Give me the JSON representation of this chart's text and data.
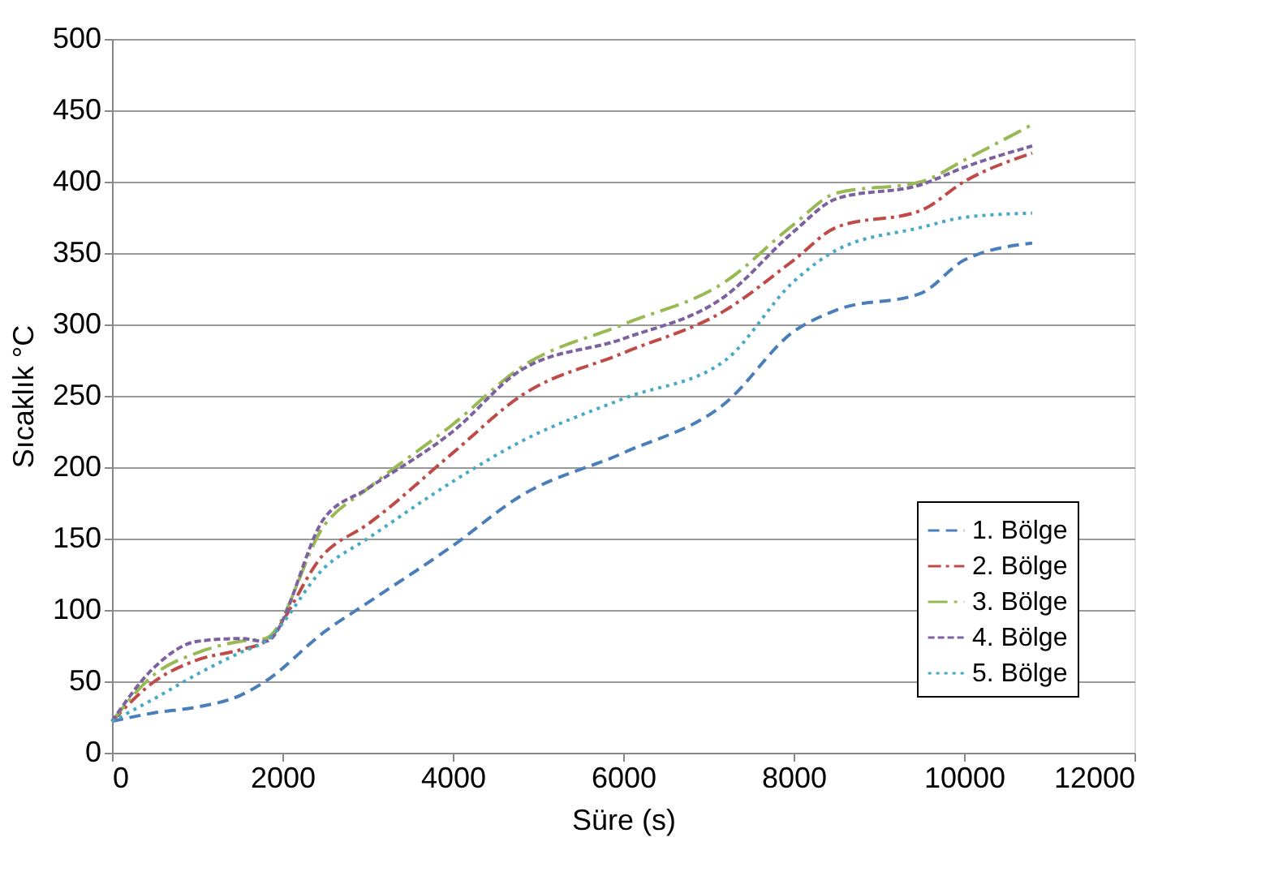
{
  "chart_data": {
    "type": "line",
    "xlabel": "Süre (s)",
    "ylabel": "Sıcaklık °C",
    "x": [
      0,
      500,
      1000,
      1500,
      1800,
      2500,
      3000,
      4000,
      4800,
      6000,
      7200,
      8000,
      8500,
      9500,
      10000,
      10800
    ],
    "series": [
      {
        "name": "1. Bölge",
        "color": "#4a7ebb",
        "line_style": "dashed",
        "values": [
          22,
          28,
          32,
          40,
          50,
          85,
          105,
          145,
          180,
          210,
          245,
          295,
          310,
          322,
          345,
          357
        ]
      },
      {
        "name": "2. Bölge",
        "color": "#be4b48",
        "line_style": "dashed",
        "values": [
          22,
          50,
          65,
          72,
          78,
          140,
          160,
          210,
          250,
          280,
          310,
          345,
          368,
          380,
          400,
          420
        ]
      },
      {
        "name": "3. Bölge",
        "color": "#98b954",
        "line_style": "dashed",
        "values": [
          22,
          55,
          70,
          78,
          80,
          160,
          185,
          230,
          270,
          300,
          330,
          370,
          392,
          400,
          415,
          440
        ]
      },
      {
        "name": "4. Bölge",
        "color": "#7d60a0",
        "line_style": "dashed",
        "values": [
          22,
          60,
          78,
          80,
          78,
          165,
          185,
          225,
          268,
          290,
          320,
          365,
          388,
          398,
          410,
          425
        ]
      },
      {
        "name": "5. Bölge",
        "color": "#46aac5",
        "line_style": "dotted",
        "values": [
          22,
          38,
          55,
          70,
          78,
          130,
          150,
          190,
          218,
          248,
          275,
          330,
          352,
          368,
          375,
          378
        ]
      }
    ],
    "xlim": [
      0,
      12000
    ],
    "xticks": [
      0,
      2000,
      4000,
      6000,
      8000,
      10000,
      12000
    ],
    "ylim": [
      0,
      500
    ],
    "yticks": [
      0,
      50,
      100,
      150,
      200,
      250,
      300,
      350,
      400,
      450,
      500
    ],
    "grid": "y",
    "legend": "bottom right"
  }
}
